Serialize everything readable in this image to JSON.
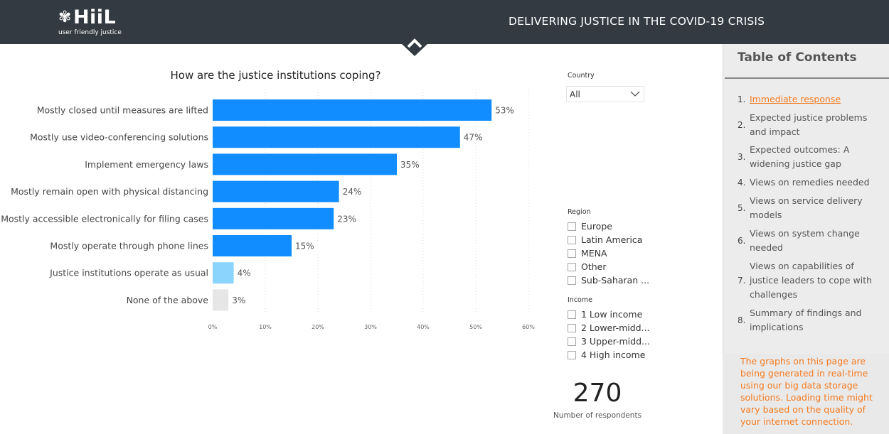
{
  "header": {
    "logo_text": "HiiL",
    "logo_tagline": "user friendly justice",
    "title": "DELIVERING JUSTICE IN THE COVID-19 CRISIS"
  },
  "chart": {
    "title": "How are the justice institutions coping?"
  },
  "chart_data": {
    "type": "bar",
    "orientation": "horizontal",
    "title": "How are the justice institutions coping?",
    "categories": [
      "Mostly closed until measures are lifted",
      "Mostly use video-conferencing solutions",
      "Implement emergency laws",
      "Mostly remain open with physical distancing",
      "Mostly accessible electronically for filing cases",
      "Mostly operate through phone lines",
      "Justice institutions operate as usual",
      "None of the above"
    ],
    "values": [
      53,
      47,
      35,
      24,
      23,
      15,
      4,
      3
    ],
    "value_labels": [
      "53%",
      "47%",
      "35%",
      "24%",
      "23%",
      "15%",
      "4%",
      "3%"
    ],
    "bar_colors": [
      "#118dff",
      "#118dff",
      "#118dff",
      "#118dff",
      "#118dff",
      "#118dff",
      "#8ad4fd",
      "#e6e6e6"
    ],
    "xlim": [
      0,
      60
    ],
    "xticks": [
      "0%",
      "10%",
      "20%",
      "30%",
      "40%",
      "50%",
      "60%"
    ],
    "grid": true
  },
  "filters": {
    "country": {
      "label": "Country",
      "value": "All"
    },
    "region": {
      "label": "Region",
      "options": [
        "Europe",
        "Latin America",
        "MENA",
        "Other",
        "Sub-Saharan ..."
      ]
    },
    "income": {
      "label": "Income",
      "options": [
        "1 Low income",
        "2 Lower-midd...",
        "3 Upper-midd...",
        "4 High income"
      ]
    }
  },
  "kpi": {
    "value": "270",
    "label": "Number of respondents"
  },
  "toc": {
    "title": "Table of Contents",
    "items": [
      {
        "num": "1.",
        "text": "Immediate response"
      },
      {
        "num": "2.",
        "text": "Expected justice problems and impact"
      },
      {
        "num": "3.",
        "text": "Expected outcomes: A widening justice gap"
      },
      {
        "num": "4.",
        "text": "Views on remedies needed"
      },
      {
        "num": "5.",
        "text": "Views on service delivery models"
      },
      {
        "num": "6.",
        "text": "Views on system change needed"
      },
      {
        "num": "7.",
        "text": "Views on capabilities of justice leaders to cope with challenges"
      },
      {
        "num": "8.",
        "text": "Summary of findings and implications"
      }
    ]
  },
  "notice": {
    "text": "The graphs on this page are being generated in real-time using our big data storage solutions. Loading time might vary based on the quality of your internet connection."
  },
  "colors": {
    "header_bg": "#333a41",
    "bar_primary": "#118dff",
    "accent_orange": "#f47b20",
    "panel_bg": "#ececec"
  },
  "icons": {
    "logo": "flower-icon",
    "toggle": "chevron-up-icon",
    "dropdown": "chevron-down-icon"
  }
}
